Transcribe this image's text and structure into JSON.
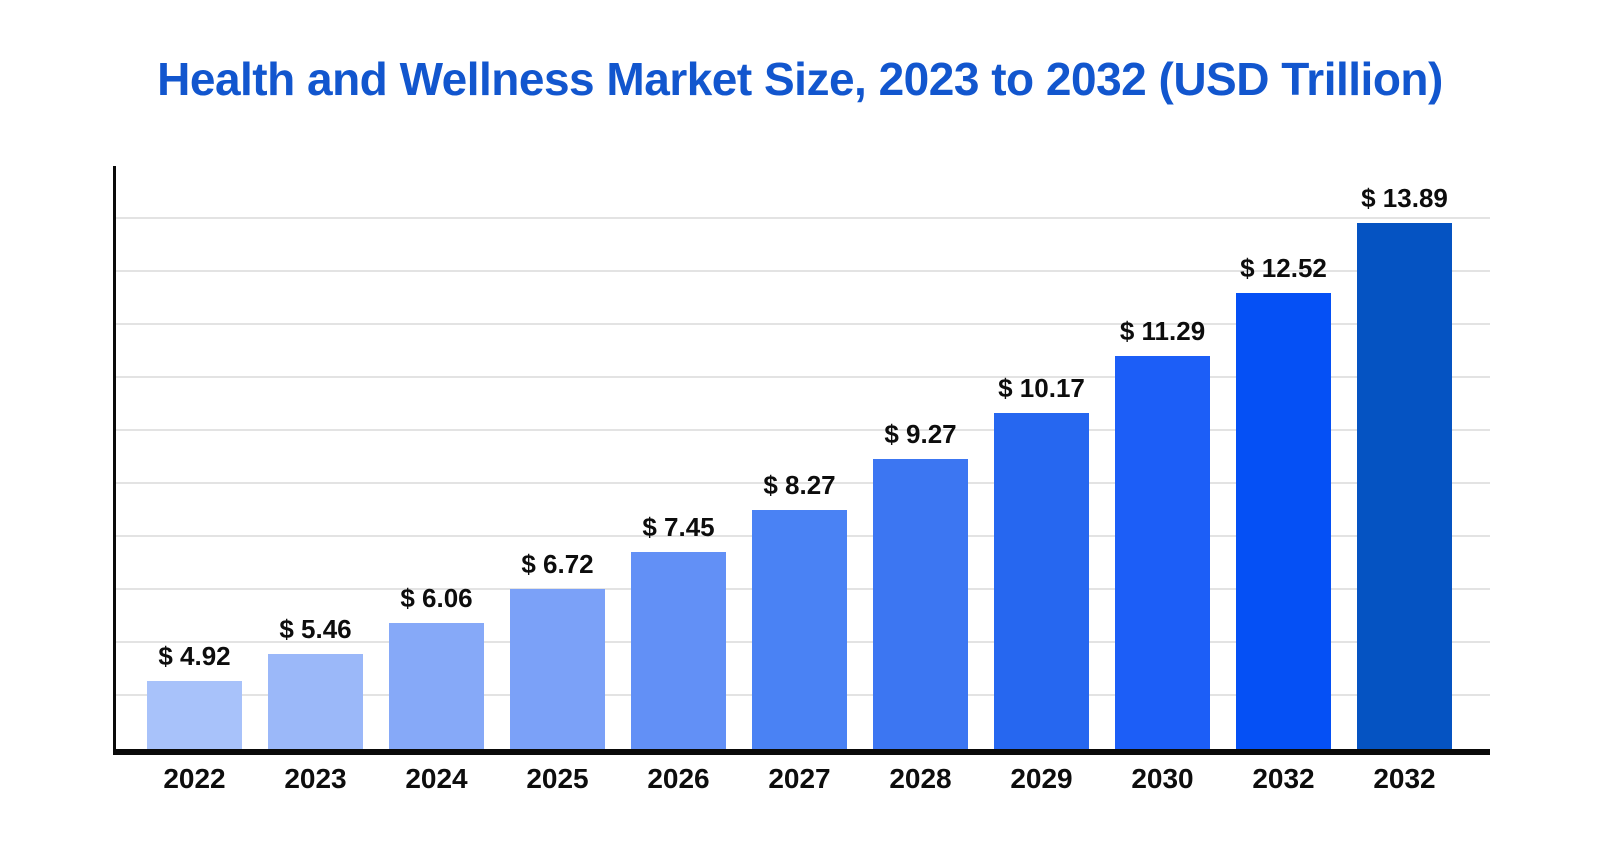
{
  "title": {
    "text": "Health and Wellness Market Size, 2023 to 2032 (USD Trillion)",
    "color": "#1256CE"
  },
  "chart_data": {
    "type": "bar",
    "title": "Health and Wellness Market Size, 2023 to 2032 (USD Trillion)",
    "unit": "USD Trillion",
    "categories": [
      "2022",
      "2023",
      "2024",
      "2025",
      "2026",
      "2027",
      "2028",
      "2029",
      "2030",
      "2032",
      "2032"
    ],
    "values": [
      4.92,
      5.46,
      6.06,
      6.72,
      7.45,
      8.27,
      9.27,
      10.17,
      11.29,
      12.52,
      13.89
    ],
    "value_labels": [
      "$ 4.92",
      "$ 5.46",
      "$ 6.06",
      "$ 6.72",
      "$ 7.45",
      "$ 8.27",
      "$ 9.27",
      "$ 10.17",
      "$ 11.29",
      "$ 12.52",
      "$ 13.89"
    ],
    "bar_colors": [
      "#A8C2FA",
      "#9BB8F9",
      "#86A9F8",
      "#7BA1F8",
      "#6290F6",
      "#4A82F4",
      "#3C76F2",
      "#2667F0",
      "#1C5EF7",
      "#0550F5",
      "#0553C2"
    ],
    "xlabel": "",
    "ylabel": "",
    "ylim": [
      3.6,
      15
    ],
    "grid": true,
    "gridline_count": 10,
    "gridline_color": "#e3e3e3",
    "axis_color": "#0a0a0a",
    "legend_position": "none",
    "value_label_color": "#0d0d0d",
    "tick_label_color": "#0d0d0d"
  }
}
